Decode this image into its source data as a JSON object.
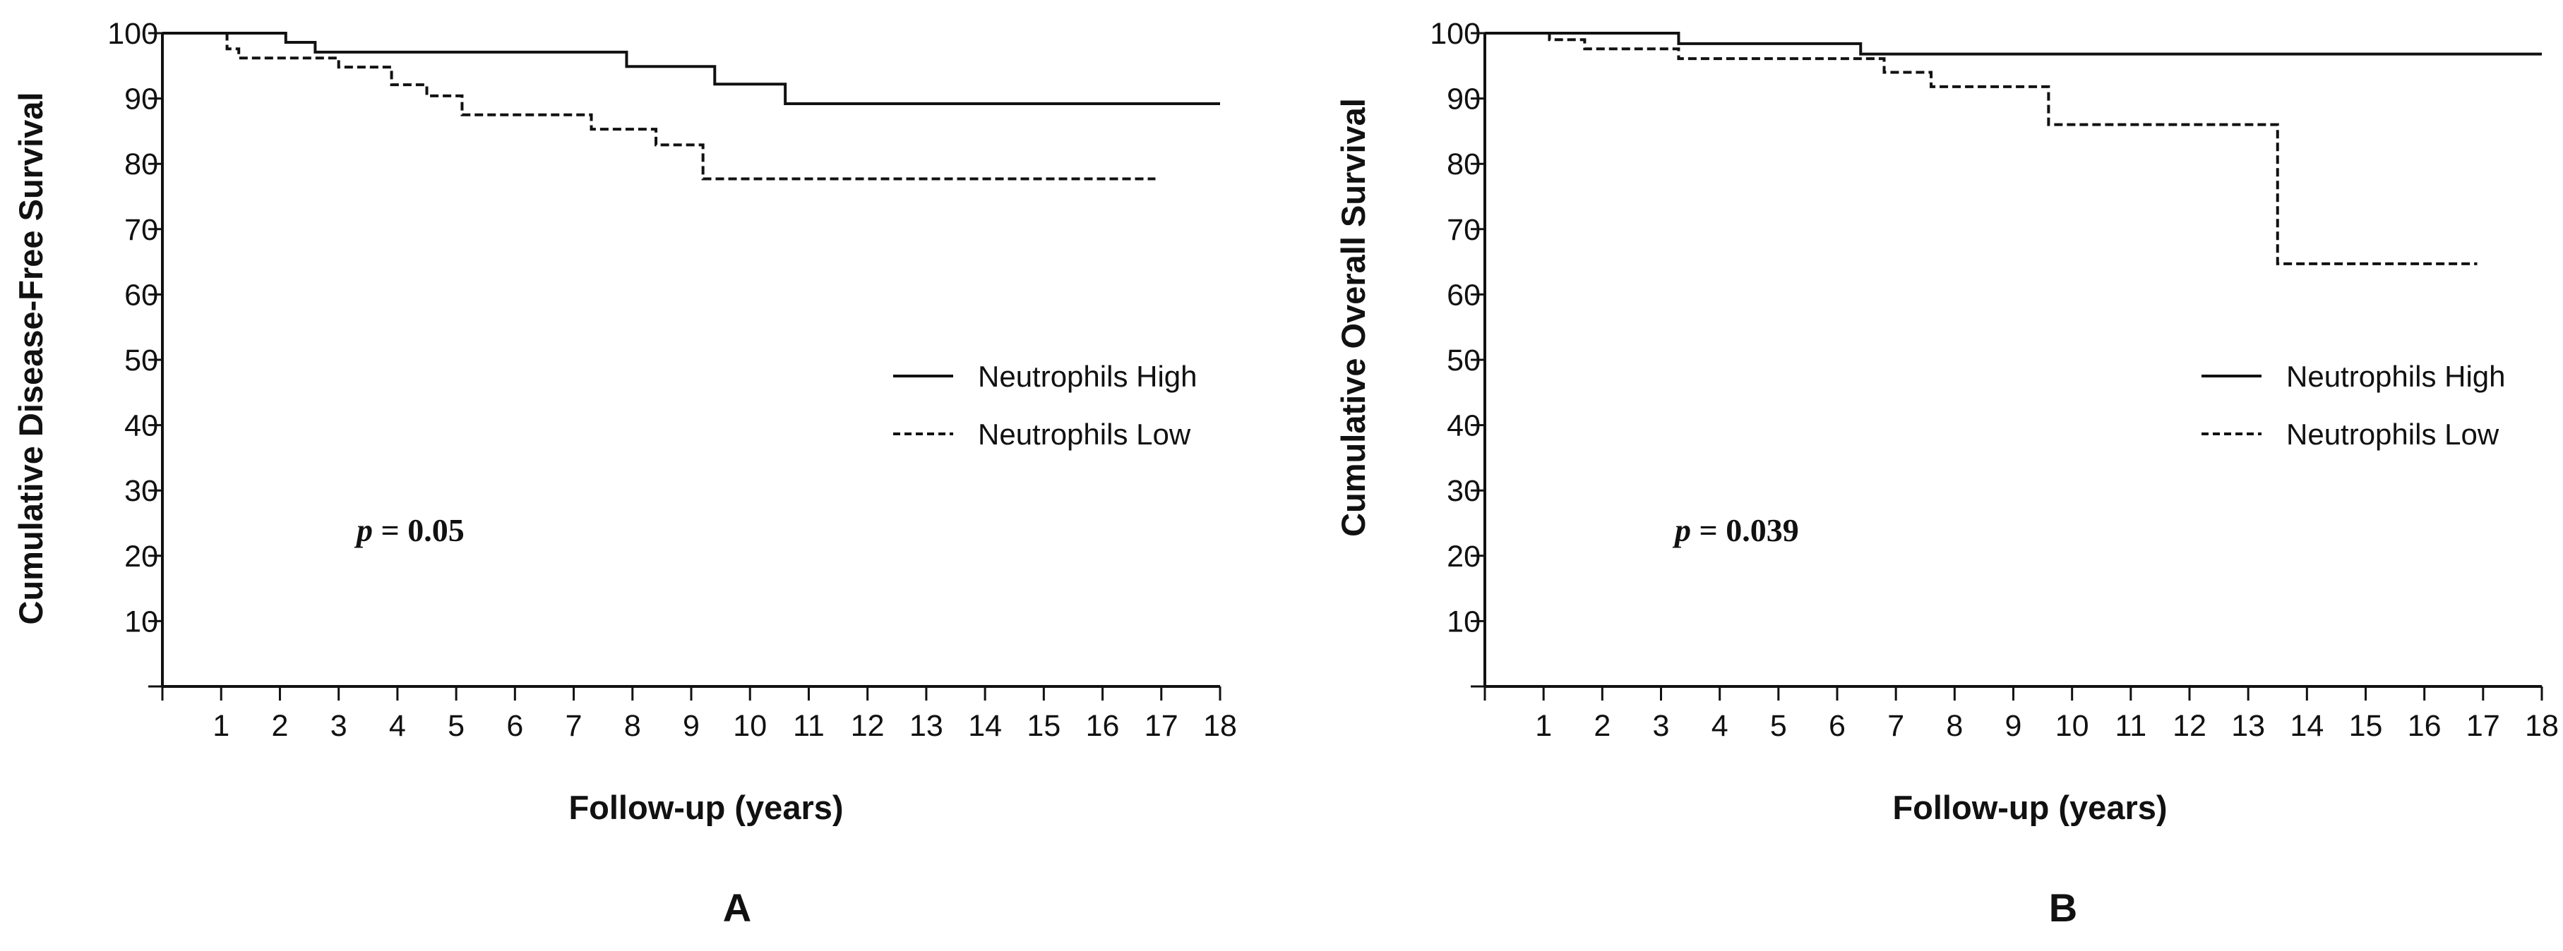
{
  "chart_data": [
    {
      "type": "line",
      "panel_label": "A",
      "xlabel": "Follow-up (years)",
      "ylabel": "Cumulative Disease-Free Survival",
      "xlim": [
        0,
        18
      ],
      "ylim": [
        0,
        100
      ],
      "xticks": [
        1,
        2,
        3,
        4,
        5,
        6,
        7,
        8,
        9,
        10,
        11,
        12,
        13,
        14,
        15,
        16,
        17,
        18
      ],
      "yticks": [
        10,
        20,
        30,
        40,
        50,
        60,
        70,
        80,
        90,
        100
      ],
      "grid": false,
      "legend_position": "right",
      "annotation": {
        "italic": "p",
        "rest": " = 0.05"
      },
      "series": [
        {
          "name": "Neutrophils High",
          "style": "solid",
          "x": [
            0,
            2.1,
            2.6,
            7.9,
            9.4,
            10.6,
            18
          ],
          "y": [
            100,
            98.6,
            97.1,
            94.9,
            92.2,
            89.2,
            89.2
          ]
        },
        {
          "name": "Neutrophils Low",
          "style": "dashed",
          "x": [
            0,
            1.1,
            1.3,
            3.0,
            3.9,
            4.5,
            5.1,
            7.3,
            8.4,
            9.2,
            16.9
          ],
          "y": [
            100,
            97.6,
            96.2,
            94.8,
            92.1,
            90.4,
            87.5,
            85.3,
            82.9,
            77.7,
            77.7
          ]
        }
      ]
    },
    {
      "type": "line",
      "panel_label": "B",
      "xlabel": "Follow-up (years)",
      "ylabel": "Cumulative Overall Survival",
      "xlim": [
        0,
        18
      ],
      "ylim": [
        0,
        100
      ],
      "xticks": [
        1,
        2,
        3,
        4,
        5,
        6,
        7,
        8,
        9,
        10,
        11,
        12,
        13,
        14,
        15,
        16,
        17,
        18
      ],
      "yticks": [
        10,
        20,
        30,
        40,
        50,
        60,
        70,
        80,
        90,
        100
      ],
      "grid": false,
      "legend_position": "right",
      "annotation": {
        "italic": "p",
        "rest": " = 0.039"
      },
      "series": [
        {
          "name": "Neutrophils High",
          "style": "solid",
          "x": [
            0,
            3.3,
            6.4,
            18
          ],
          "y": [
            100,
            98.4,
            96.8,
            96.8
          ]
        },
        {
          "name": "Neutrophils Low",
          "style": "dashed",
          "x": [
            0,
            1.1,
            1.7,
            3.3,
            6.8,
            7.6,
            9.6,
            13.5,
            16.9
          ],
          "y": [
            100,
            99.0,
            97.6,
            96.1,
            94.0,
            91.8,
            86.0,
            64.7,
            64.7
          ]
        }
      ]
    }
  ]
}
